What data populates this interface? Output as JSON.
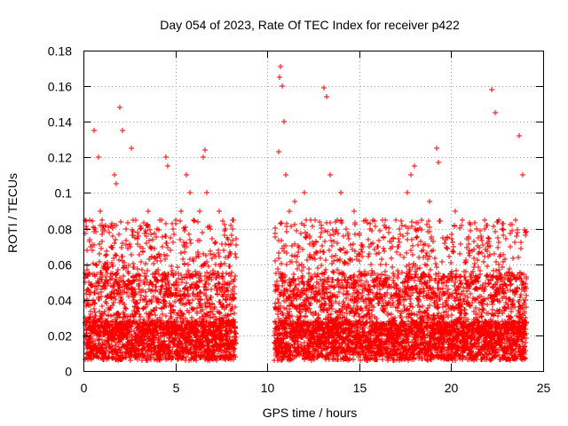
{
  "chart_data": {
    "type": "scatter",
    "title": "Day 054 of 2023, Rate Of TEC Index for receiver p422",
    "xlabel": "GPS time / hours",
    "ylabel": "ROTI / TECUs",
    "xlim": [
      0,
      25
    ],
    "ylim": [
      0,
      0.18
    ],
    "xticks": [
      0,
      5,
      10,
      15,
      20,
      25
    ],
    "xtick_labels": [
      "0",
      "5",
      "10",
      "15",
      "20",
      "25"
    ],
    "yticks": [
      0,
      0.02,
      0.04,
      0.06,
      0.08,
      0.1,
      0.12,
      0.14,
      0.16,
      0.18
    ],
    "ytick_labels": [
      "0",
      "0.02",
      "0.04",
      "0.06",
      "0.08",
      "0.1",
      "0.12",
      "0.14",
      "0.16",
      "0.18"
    ],
    "grid": true,
    "marker": "+",
    "marker_color": "#ff0000",
    "coverage_hours": [
      [
        0,
        8.3
      ],
      [
        10.4,
        24.1
      ]
    ],
    "data_gap_hours": [
      8.3,
      10.4
    ],
    "series": [
      {
        "x": [
          0.1,
          0.2,
          0.4,
          0.6,
          0.8,
          0.9,
          1.0,
          1.2,
          1.5,
          1.7,
          1.8,
          2.0,
          2.1,
          2.3,
          2.6,
          2.8,
          3.1,
          3.5,
          4.0,
          4.3,
          4.5,
          4.6,
          5.0,
          5.3,
          5.5,
          5.6,
          5.8,
          6.0,
          6.3,
          6.5,
          6.6,
          6.7,
          6.9,
          7.2,
          7.4,
          7.7,
          7.9,
          8.1,
          10.6,
          10.65,
          10.7,
          10.8,
          10.9,
          11.0,
          11.2,
          11.5,
          12.0,
          12.3,
          12.6,
          13.1,
          13.2,
          13.4,
          13.8,
          14.0,
          14.3,
          14.7,
          15.2,
          15.6,
          16.0,
          16.4,
          16.8,
          17.2,
          17.6,
          17.8,
          18.0,
          18.4,
          18.8,
          19.2,
          19.3,
          19.8,
          20.2,
          20.6,
          21.0,
          21.4,
          21.8,
          22.0,
          22.2,
          22.4,
          22.8,
          23.2,
          23.5,
          23.7,
          23.9
        ],
        "y": [
          0.03,
          0.08,
          0.07,
          0.135,
          0.12,
          0.09,
          0.085,
          0.06,
          0.07,
          0.11,
          0.105,
          0.148,
          0.135,
          0.08,
          0.125,
          0.075,
          0.08,
          0.09,
          0.08,
          0.07,
          0.12,
          0.115,
          0.085,
          0.09,
          0.07,
          0.11,
          0.1,
          0.085,
          0.09,
          0.12,
          0.124,
          0.1,
          0.08,
          0.06,
          0.09,
          0.08,
          0.065,
          0.085,
          0.123,
          0.165,
          0.171,
          0.16,
          0.14,
          0.11,
          0.09,
          0.095,
          0.1,
          0.075,
          0.085,
          0.159,
          0.154,
          0.11,
          0.085,
          0.1,
          0.08,
          0.09,
          0.07,
          0.08,
          0.07,
          0.085,
          0.07,
          0.08,
          0.1,
          0.11,
          0.115,
          0.085,
          0.095,
          0.125,
          0.117,
          0.075,
          0.09,
          0.085,
          0.065,
          0.08,
          0.085,
          0.075,
          0.158,
          0.145,
          0.08,
          0.07,
          0.085,
          0.132,
          0.11
        ]
      }
    ]
  }
}
